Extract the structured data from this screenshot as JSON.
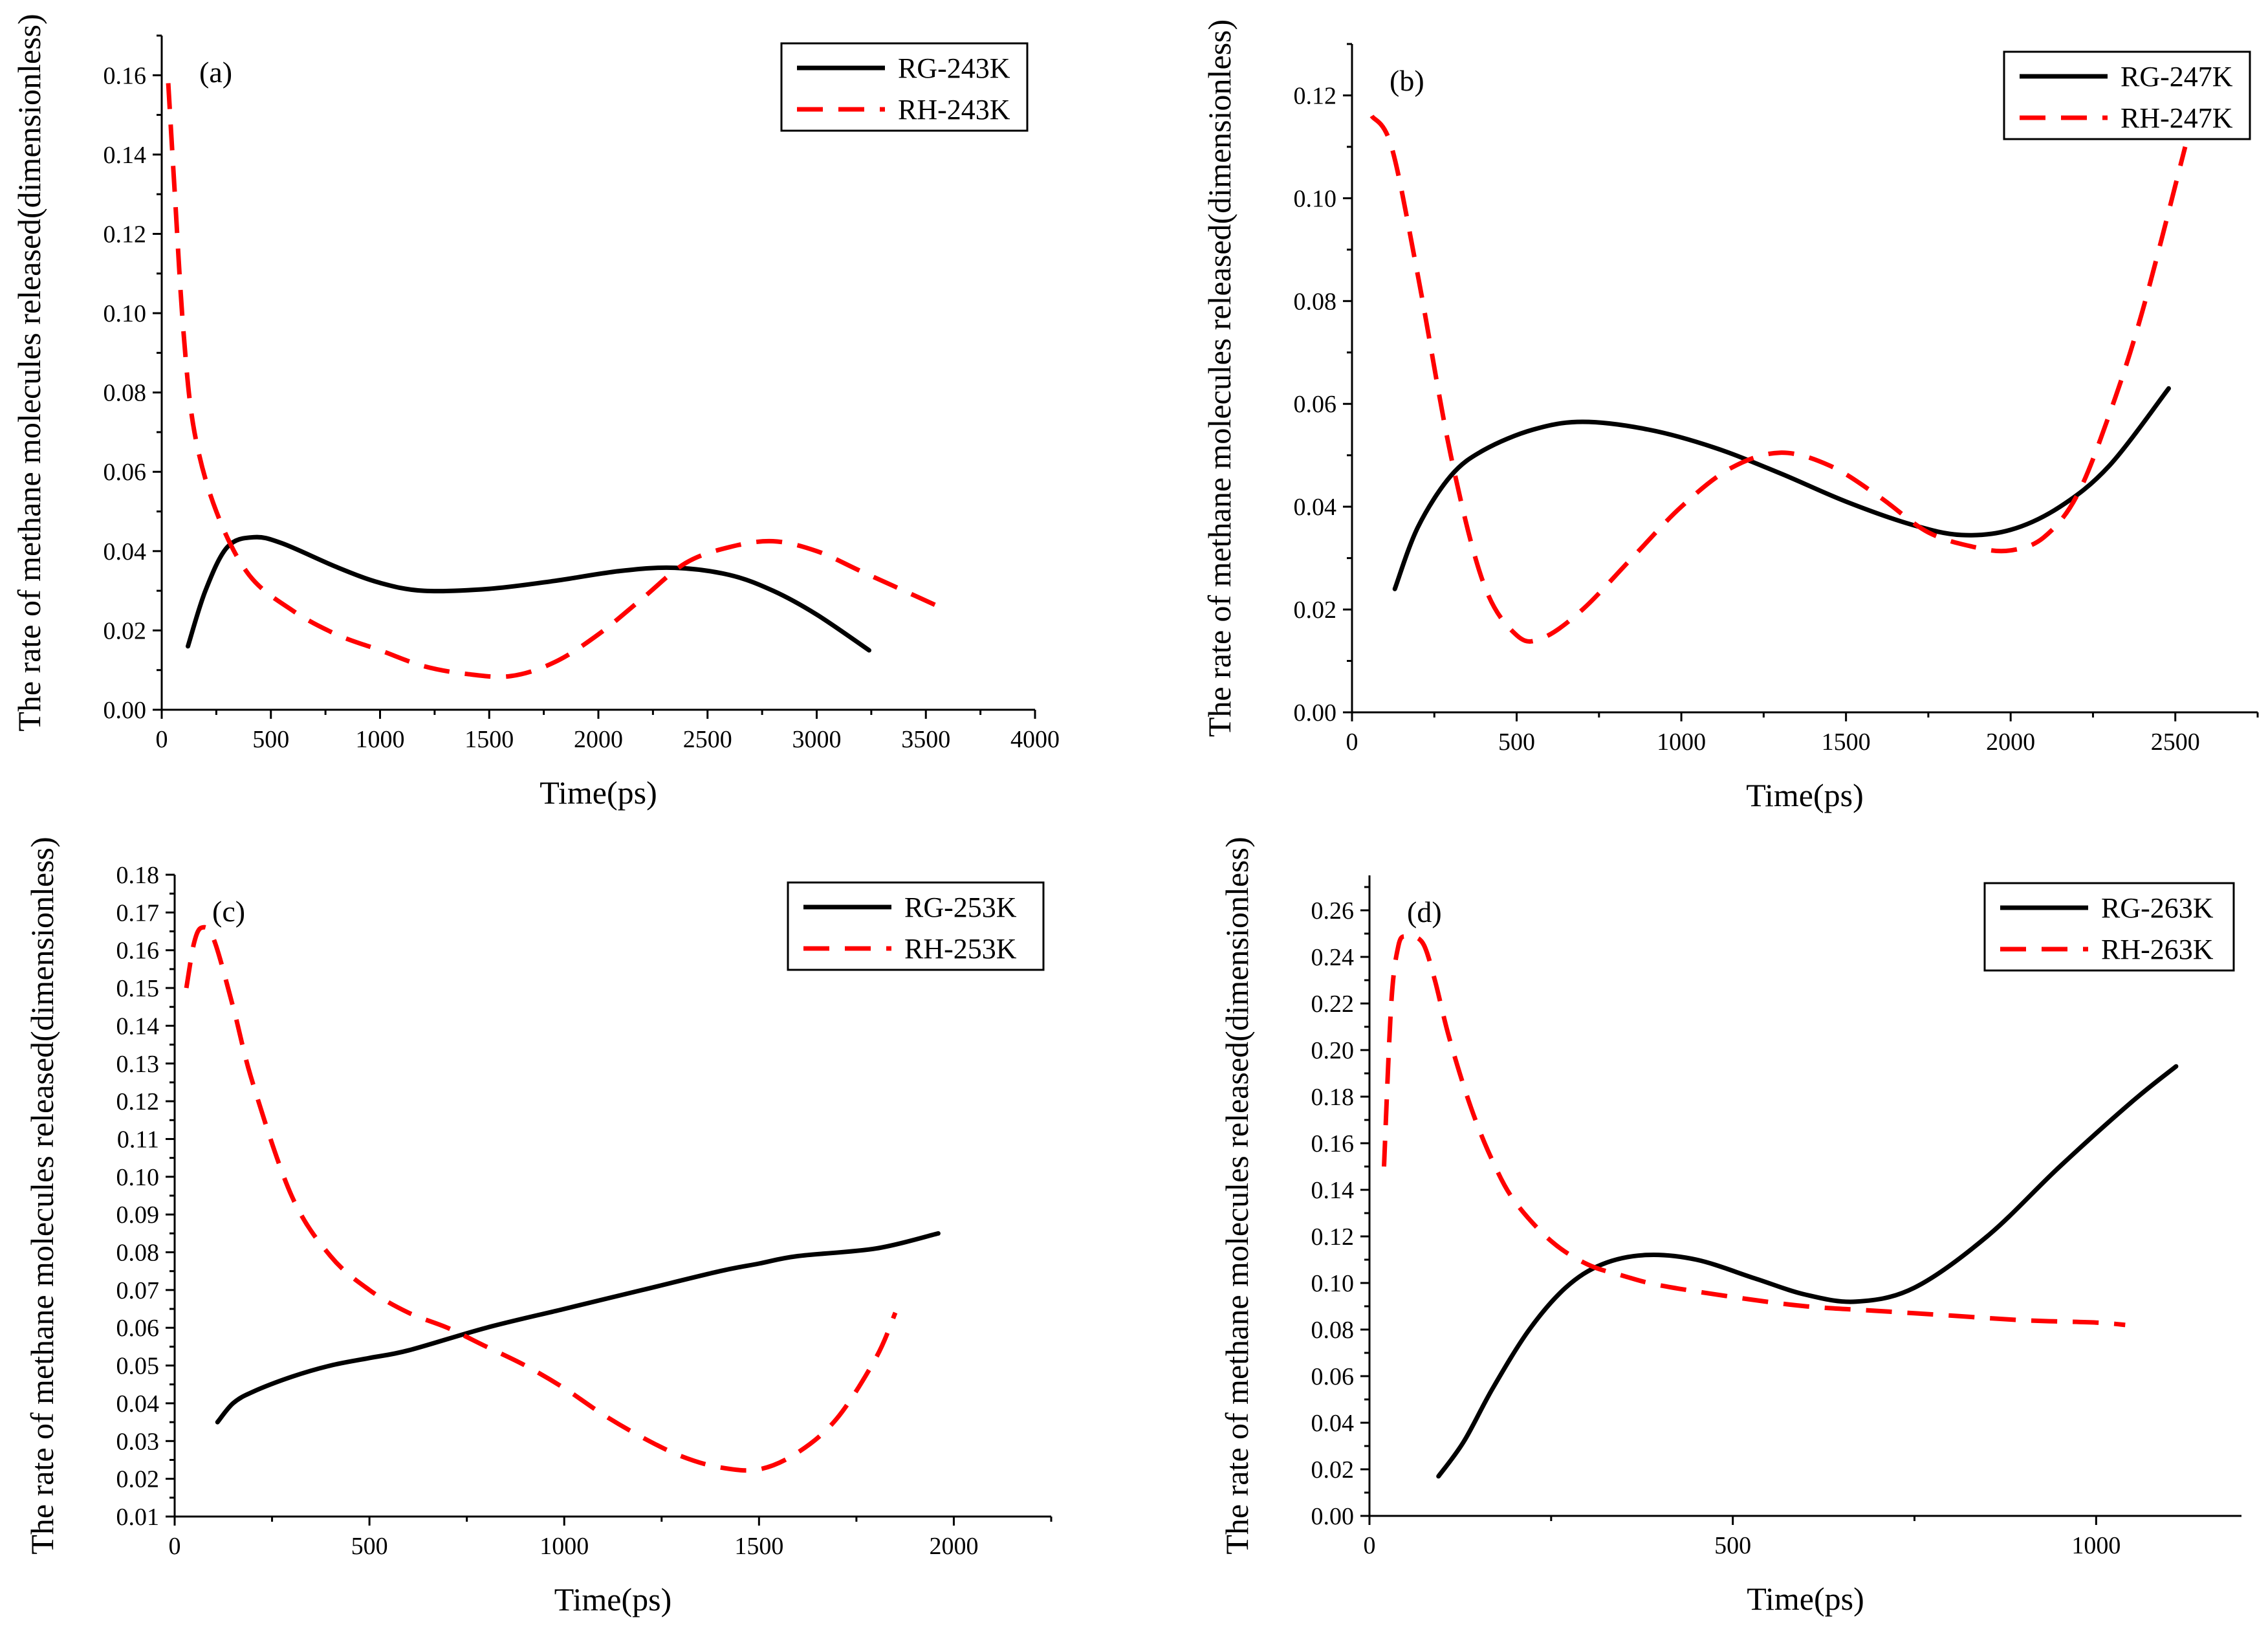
{
  "chart_data": [
    {
      "type": "line",
      "panel_label": "(a)",
      "xlabel": "Time(ps)",
      "ylabel": "The rate of methane molecules released(dimensionless)",
      "xlim": [
        0,
        4000
      ],
      "ylim": [
        0,
        0.17
      ],
      "xticks": [
        0,
        500,
        1000,
        1500,
        2000,
        2500,
        3000,
        3500,
        4000
      ],
      "xtick_labels": [
        "0",
        "500",
        "1000",
        "1500",
        "2000",
        "2500",
        "3000",
        "3500",
        "4000"
      ],
      "yticks": [
        0,
        0.02,
        0.04,
        0.06,
        0.08,
        0.1,
        0.12,
        0.14,
        0.16
      ],
      "ytick_labels": [
        "0.00",
        "0.02",
        "0.04",
        "0.06",
        "0.08",
        "0.10",
        "0.12",
        "0.14",
        "0.16"
      ],
      "legend_position": "top-right",
      "series": [
        {
          "name": "RG-243K",
          "style": "solid",
          "color": "#000000",
          "x": [
            120,
            200,
            300,
            420,
            550,
            800,
            1000,
            1200,
            1500,
            1800,
            2100,
            2350,
            2600,
            2800,
            3000,
            3240
          ],
          "y": [
            0.016,
            0.03,
            0.041,
            0.0435,
            0.042,
            0.036,
            0.032,
            0.03,
            0.0305,
            0.0325,
            0.035,
            0.0358,
            0.034,
            0.03,
            0.024,
            0.015
          ]
        },
        {
          "name": "RH-243K",
          "style": "dashed",
          "color": "#ff0000",
          "x": [
            30,
            60,
            100,
            150,
            250,
            400,
            600,
            800,
            1000,
            1200,
            1400,
            1600,
            1800,
            2000,
            2200,
            2400,
            2600,
            2800,
            3000,
            3200,
            3400,
            3600
          ],
          "y": [
            0.158,
            0.13,
            0.095,
            0.07,
            0.05,
            0.034,
            0.025,
            0.019,
            0.015,
            0.011,
            0.009,
            0.0085,
            0.012,
            0.019,
            0.028,
            0.037,
            0.041,
            0.0425,
            0.04,
            0.035,
            0.03,
            0.025
          ]
        }
      ]
    },
    {
      "type": "line",
      "panel_label": "(b)",
      "xlabel": "Time(ps)",
      "ylabel": "The rate of methane molecules released(dimensionless)",
      "xlim": [
        0,
        2750
      ],
      "ylim": [
        0,
        0.13
      ],
      "xticks": [
        0,
        500,
        1000,
        1500,
        2000,
        2500
      ],
      "xtick_labels": [
        "0",
        "500",
        "1000",
        "1500",
        "2000",
        "2500"
      ],
      "yticks": [
        0,
        0.02,
        0.04,
        0.06,
        0.08,
        0.1,
        0.12
      ],
      "ytick_labels": [
        "0.00",
        "0.02",
        "0.04",
        "0.06",
        "0.08",
        "0.10",
        "0.12"
      ],
      "legend_position": "top-right",
      "series": [
        {
          "name": "RG-247K",
          "style": "solid",
          "color": "#000000",
          "x": [
            130,
            200,
            300,
            400,
            550,
            700,
            900,
            1100,
            1300,
            1500,
            1700,
            1850,
            2000,
            2150,
            2300,
            2480
          ],
          "y": [
            0.024,
            0.036,
            0.046,
            0.051,
            0.055,
            0.0565,
            0.055,
            0.0515,
            0.0465,
            0.041,
            0.0365,
            0.0345,
            0.0355,
            0.04,
            0.048,
            0.063
          ]
        },
        {
          "name": "RH-247K",
          "style": "dashed",
          "color": "#ff0000",
          "x": [
            60,
            120,
            200,
            300,
            400,
            500,
            580,
            700,
            850,
            1000,
            1150,
            1300,
            1450,
            1600,
            1750,
            1900,
            2000,
            2100,
            2200,
            2300,
            2400,
            2530
          ],
          "y": [
            0.116,
            0.11,
            0.085,
            0.05,
            0.025,
            0.015,
            0.0145,
            0.02,
            0.03,
            0.04,
            0.0475,
            0.0505,
            0.048,
            0.042,
            0.035,
            0.032,
            0.0315,
            0.034,
            0.042,
            0.058,
            0.078,
            0.11
          ]
        }
      ]
    },
    {
      "type": "line",
      "panel_label": "(c)",
      "xlabel": "Time(ps)",
      "ylabel": "The rate of methane molecules released(dimensionless)",
      "xlim": [
        0,
        2250
      ],
      "ylim": [
        0.01,
        0.18
      ],
      "xticks": [
        0,
        500,
        1000,
        1500,
        2000
      ],
      "xtick_labels": [
        "0",
        "500",
        "1000",
        "1500",
        "2000"
      ],
      "yticks": [
        0.01,
        0.02,
        0.03,
        0.04,
        0.05,
        0.06,
        0.07,
        0.08,
        0.09,
        0.1,
        0.11,
        0.12,
        0.13,
        0.14,
        0.15,
        0.16,
        0.17,
        0.18
      ],
      "ytick_labels": [
        "0.01",
        "0.02",
        "0.03",
        "0.04",
        "0.05",
        "0.06",
        "0.07",
        "0.08",
        "0.09",
        "0.10",
        "0.11",
        "0.12",
        "0.13",
        "0.14",
        "0.15",
        "0.16",
        "0.17",
        "0.18"
      ],
      "legend_position": "top-right",
      "series": [
        {
          "name": "RG-253K",
          "style": "solid",
          "color": "#000000",
          "x": [
            110,
            150,
            200,
            300,
            400,
            500,
            600,
            800,
            1000,
            1200,
            1400,
            1500,
            1600,
            1800,
            1960
          ],
          "y": [
            0.035,
            0.04,
            0.043,
            0.047,
            0.05,
            0.052,
            0.054,
            0.06,
            0.065,
            0.07,
            0.075,
            0.077,
            0.079,
            0.081,
            0.085
          ]
        },
        {
          "name": "RH-253K",
          "style": "dashed",
          "color": "#ff0000",
          "x": [
            30,
            50,
            70,
            100,
            150,
            200,
            300,
            400,
            500,
            600,
            700,
            800,
            900,
            1000,
            1100,
            1200,
            1300,
            1400,
            1500,
            1600,
            1700,
            1800,
            1850
          ],
          "y": [
            0.15,
            0.162,
            0.166,
            0.163,
            0.145,
            0.125,
            0.095,
            0.079,
            0.07,
            0.064,
            0.06,
            0.055,
            0.05,
            0.044,
            0.037,
            0.031,
            0.026,
            0.023,
            0.0225,
            0.027,
            0.036,
            0.052,
            0.064
          ]
        }
      ]
    },
    {
      "type": "line",
      "panel_label": "(d)",
      "xlabel": "Time(ps)",
      "ylabel": "The rate of methane molecules released(dimensionless)",
      "xlim": [
        0,
        1200
      ],
      "ylim": [
        0,
        0.275
      ],
      "xticks": [
        0,
        500,
        1000
      ],
      "xtick_labels": [
        "0",
        "500",
        "1000"
      ],
      "yticks": [
        0,
        0.02,
        0.04,
        0.06,
        0.08,
        0.1,
        0.12,
        0.14,
        0.16,
        0.18,
        0.2,
        0.22,
        0.24,
        0.26
      ],
      "ytick_labels": [
        "0.00",
        "0.02",
        "0.04",
        "0.06",
        "0.08",
        "0.10",
        "0.12",
        "0.14",
        "0.16",
        "0.18",
        "0.20",
        "0.22",
        "0.24",
        "0.26"
      ],
      "legend_position": "top-right",
      "series": [
        {
          "name": "RG-263K",
          "style": "solid",
          "color": "#000000",
          "x": [
            95,
            130,
            170,
            220,
            270,
            320,
            380,
            450,
            530,
            600,
            670,
            750,
            850,
            950,
            1050,
            1110
          ],
          "y": [
            0.017,
            0.032,
            0.055,
            0.08,
            0.098,
            0.108,
            0.112,
            0.11,
            0.102,
            0.095,
            0.092,
            0.098,
            0.12,
            0.15,
            0.178,
            0.193
          ]
        },
        {
          "name": "RH-263K",
          "style": "dashed",
          "color": "#ff0000",
          "x": [
            20,
            30,
            40,
            50,
            60,
            75,
            90,
            110,
            140,
            170,
            200,
            250,
            300,
            350,
            400,
            500,
            600,
            700,
            800,
            900,
            1000,
            1040
          ],
          "y": [
            0.15,
            0.22,
            0.245,
            0.249,
            0.249,
            0.245,
            0.23,
            0.205,
            0.175,
            0.152,
            0.135,
            0.118,
            0.108,
            0.103,
            0.099,
            0.094,
            0.09,
            0.088,
            0.086,
            0.084,
            0.083,
            0.082
          ]
        }
      ]
    }
  ]
}
